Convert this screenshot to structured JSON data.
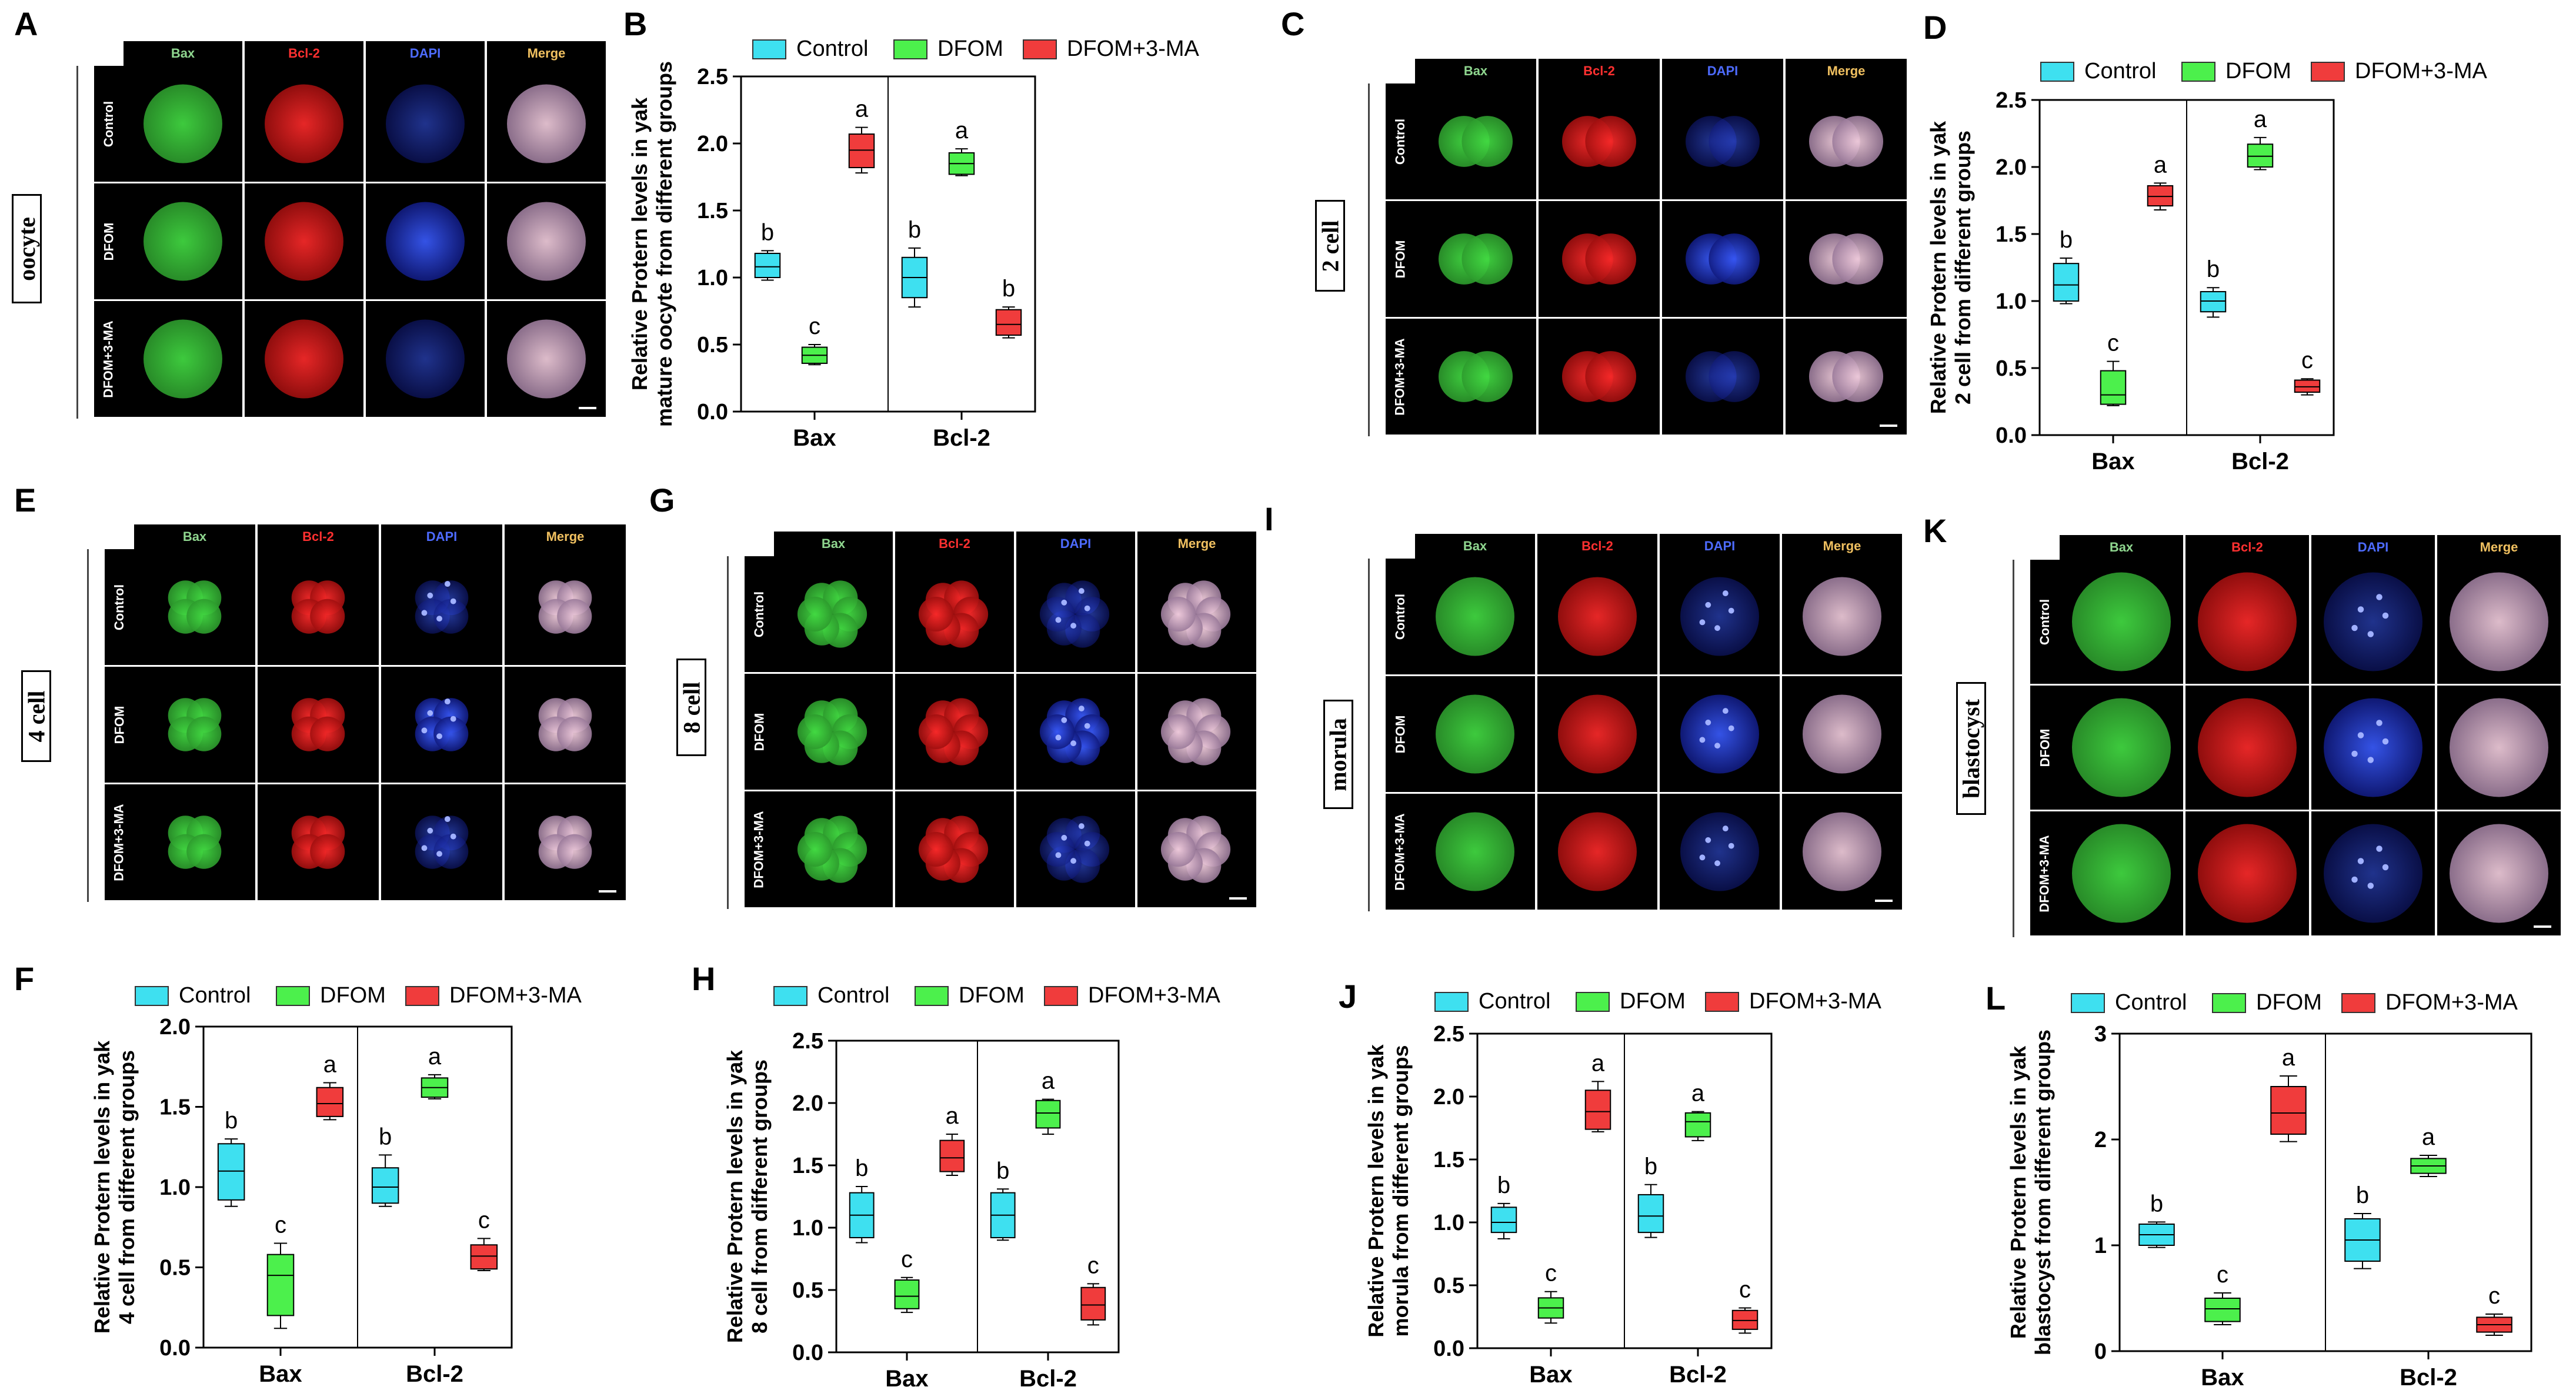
{
  "figure": {
    "panel_letters": [
      "A",
      "B",
      "C",
      "D",
      "E",
      "F",
      "G",
      "H",
      "I",
      "J",
      "K",
      "L"
    ],
    "channel_headers": [
      "Bax",
      "Bcl-2",
      "DAPI",
      "Merge"
    ],
    "row_labels": [
      "Control",
      "DFOM",
      "DFOM+3-MA"
    ],
    "header_colors": [
      "#8fd68f",
      "#ff3030",
      "#4d6bff",
      "#f0c060"
    ],
    "stages": [
      {
        "panel": "A",
        "label": "oocyte"
      },
      {
        "panel": "C",
        "label": "2 cell"
      },
      {
        "panel": "E",
        "label": "4 cell"
      },
      {
        "panel": "G",
        "label": "8 cell"
      },
      {
        "panel": "I",
        "label": "morula"
      },
      {
        "panel": "K",
        "label": "blastocyst"
      }
    ],
    "legend": {
      "items": [
        "Control",
        "DFOM",
        "DFOM+3-MA"
      ],
      "colors": [
        "#3ee0f0",
        "#4cf04c",
        "#f03c3c"
      ]
    }
  },
  "chart_data": [
    {
      "panel": "B",
      "type": "box",
      "categories": [
        "Bax",
        "Bcl-2"
      ],
      "ylabel": "Relative Protern levels in yak mature oocyte from different groups",
      "ylim": [
        0,
        2.5
      ],
      "yticks": [
        "0.0",
        "0.5",
        "1.0",
        "1.5",
        "2.0",
        "2.5"
      ],
      "series": [
        {
          "name": "Control",
          "boxes": [
            {
              "min": 0.98,
              "q1": 1.0,
              "median": 1.08,
              "q3": 1.18,
              "max": 1.2,
              "letter": "b"
            },
            {
              "min": 0.78,
              "q1": 0.85,
              "median": 1.0,
              "q3": 1.15,
              "max": 1.22,
              "letter": "b"
            }
          ]
        },
        {
          "name": "DFOM",
          "boxes": [
            {
              "min": 0.35,
              "q1": 0.36,
              "median": 0.42,
              "q3": 0.48,
              "max": 0.5,
              "letter": "c"
            },
            {
              "min": 1.76,
              "q1": 1.77,
              "median": 1.85,
              "q3": 1.93,
              "max": 1.96,
              "letter": "a"
            }
          ]
        },
        {
          "name": "DFOM+3-MA",
          "boxes": [
            {
              "min": 1.78,
              "q1": 1.82,
              "median": 1.95,
              "q3": 2.07,
              "max": 2.12,
              "letter": "a"
            },
            {
              "min": 0.55,
              "q1": 0.57,
              "median": 0.65,
              "q3": 0.76,
              "max": 0.78,
              "letter": "b"
            }
          ]
        }
      ]
    },
    {
      "panel": "D",
      "type": "box",
      "categories": [
        "Bax",
        "Bcl-2"
      ],
      "ylabel": "Relative Protern levels in yak 2 cell from different groups",
      "ylim": [
        0,
        2.5
      ],
      "yticks": [
        "0.0",
        "0.5",
        "1.0",
        "1.5",
        "2.0",
        "2.5"
      ],
      "series": [
        {
          "name": "Control",
          "boxes": [
            {
              "min": 0.98,
              "q1": 1.0,
              "median": 1.12,
              "q3": 1.28,
              "max": 1.32,
              "letter": "b"
            },
            {
              "min": 0.88,
              "q1": 0.92,
              "median": 1.0,
              "q3": 1.07,
              "max": 1.1,
              "letter": "b"
            }
          ]
        },
        {
          "name": "DFOM",
          "boxes": [
            {
              "min": 0.22,
              "q1": 0.23,
              "median": 0.3,
              "q3": 0.48,
              "max": 0.55,
              "letter": "c"
            },
            {
              "min": 1.98,
              "q1": 2.0,
              "median": 2.08,
              "q3": 2.17,
              "max": 2.22,
              "letter": "a"
            }
          ]
        },
        {
          "name": "DFOM+3-MA",
          "boxes": [
            {
              "min": 1.68,
              "q1": 1.71,
              "median": 1.78,
              "q3": 1.86,
              "max": 1.88,
              "letter": "a"
            },
            {
              "min": 0.3,
              "q1": 0.32,
              "median": 0.36,
              "q3": 0.41,
              "max": 0.42,
              "letter": "c"
            }
          ]
        }
      ]
    },
    {
      "panel": "F",
      "type": "box",
      "categories": [
        "Bax",
        "Bcl-2"
      ],
      "ylabel": "Relative Protern levels in yak 4 cell from different groups",
      "ylim": [
        0,
        2.0
      ],
      "yticks": [
        "0.0",
        "0.5",
        "1.0",
        "1.5",
        "2.0"
      ],
      "series": [
        {
          "name": "Control",
          "boxes": [
            {
              "min": 0.88,
              "q1": 0.92,
              "median": 1.1,
              "q3": 1.27,
              "max": 1.3,
              "letter": "b"
            },
            {
              "min": 0.88,
              "q1": 0.9,
              "median": 1.0,
              "q3": 1.12,
              "max": 1.2,
              "letter": "b"
            }
          ]
        },
        {
          "name": "DFOM",
          "boxes": [
            {
              "min": 0.12,
              "q1": 0.2,
              "median": 0.45,
              "q3": 0.58,
              "max": 0.65,
              "letter": "c"
            },
            {
              "min": 1.55,
              "q1": 1.56,
              "median": 1.62,
              "q3": 1.68,
              "max": 1.7,
              "letter": "a"
            }
          ]
        },
        {
          "name": "DFOM+3-MA",
          "boxes": [
            {
              "min": 1.42,
              "q1": 1.44,
              "median": 1.52,
              "q3": 1.62,
              "max": 1.65,
              "letter": "a"
            },
            {
              "min": 0.48,
              "q1": 0.49,
              "median": 0.57,
              "q3": 0.64,
              "max": 0.68,
              "letter": "c"
            }
          ]
        }
      ]
    },
    {
      "panel": "H",
      "type": "box",
      "categories": [
        "Bax",
        "Bcl-2"
      ],
      "ylabel": "Relative Protern levels in yak 8 cell from different groups",
      "ylim": [
        0,
        2.5
      ],
      "yticks": [
        "0.0",
        "0.5",
        "1.0",
        "1.5",
        "2.0",
        "2.5"
      ],
      "series": [
        {
          "name": "Control",
          "boxes": [
            {
              "min": 0.88,
              "q1": 0.92,
              "median": 1.1,
              "q3": 1.28,
              "max": 1.33,
              "letter": "b"
            },
            {
              "min": 0.9,
              "q1": 0.92,
              "median": 1.1,
              "q3": 1.28,
              "max": 1.31,
              "letter": "b"
            }
          ]
        },
        {
          "name": "DFOM",
          "boxes": [
            {
              "min": 0.32,
              "q1": 0.35,
              "median": 0.45,
              "q3": 0.58,
              "max": 0.6,
              "letter": "c"
            },
            {
              "min": 1.75,
              "q1": 1.8,
              "median": 1.92,
              "q3": 2.02,
              "max": 2.03,
              "letter": "a"
            }
          ]
        },
        {
          "name": "DFOM+3-MA",
          "boxes": [
            {
              "min": 1.42,
              "q1": 1.45,
              "median": 1.56,
              "q3": 1.7,
              "max": 1.75,
              "letter": "a"
            },
            {
              "min": 0.22,
              "q1": 0.26,
              "median": 0.38,
              "q3": 0.52,
              "max": 0.55,
              "letter": "c"
            }
          ]
        }
      ]
    },
    {
      "panel": "J",
      "type": "box",
      "categories": [
        "Bax",
        "Bcl-2"
      ],
      "ylabel": "Relative Protern levels in yak morula from different groups",
      "ylim": [
        0,
        2.5
      ],
      "yticks": [
        "0.0",
        "0.5",
        "1.0",
        "1.5",
        "2.0",
        "2.5"
      ],
      "series": [
        {
          "name": "Control",
          "boxes": [
            {
              "min": 0.87,
              "q1": 0.92,
              "median": 1.0,
              "q3": 1.12,
              "max": 1.15,
              "letter": "b"
            },
            {
              "min": 0.88,
              "q1": 0.92,
              "median": 1.05,
              "q3": 1.22,
              "max": 1.3,
              "letter": "b"
            }
          ]
        },
        {
          "name": "DFOM",
          "boxes": [
            {
              "min": 0.2,
              "q1": 0.24,
              "median": 0.32,
              "q3": 0.4,
              "max": 0.45,
              "letter": "c"
            },
            {
              "min": 1.65,
              "q1": 1.68,
              "median": 1.8,
              "q3": 1.87,
              "max": 1.88,
              "letter": "a"
            }
          ]
        },
        {
          "name": "DFOM+3-MA",
          "boxes": [
            {
              "min": 1.72,
              "q1": 1.74,
              "median": 1.88,
              "q3": 2.05,
              "max": 2.12,
              "letter": "a"
            },
            {
              "min": 0.12,
              "q1": 0.15,
              "median": 0.22,
              "q3": 0.3,
              "max": 0.32,
              "letter": "c"
            }
          ]
        }
      ]
    },
    {
      "panel": "L",
      "type": "box",
      "categories": [
        "Bax",
        "Bcl-2"
      ],
      "ylabel": "Relative Protern levels in yak blastocyst from different groups",
      "ylim": [
        0,
        3
      ],
      "yticks": [
        "0",
        "1",
        "2",
        "3"
      ],
      "series": [
        {
          "name": "Control",
          "boxes": [
            {
              "min": 0.98,
              "q1": 1.0,
              "median": 1.1,
              "q3": 1.2,
              "max": 1.22,
              "letter": "b"
            },
            {
              "min": 0.78,
              "q1": 0.85,
              "median": 1.05,
              "q3": 1.25,
              "max": 1.3,
              "letter": "b"
            }
          ]
        },
        {
          "name": "DFOM",
          "boxes": [
            {
              "min": 0.25,
              "q1": 0.28,
              "median": 0.4,
              "q3": 0.5,
              "max": 0.55,
              "letter": "c"
            },
            {
              "min": 1.65,
              "q1": 1.68,
              "median": 1.75,
              "q3": 1.82,
              "max": 1.85,
              "letter": "a"
            }
          ]
        },
        {
          "name": "DFOM+3-MA",
          "boxes": [
            {
              "min": 1.98,
              "q1": 2.05,
              "median": 2.25,
              "q3": 2.5,
              "max": 2.6,
              "letter": "a"
            },
            {
              "min": 0.15,
              "q1": 0.18,
              "median": 0.25,
              "q3": 0.32,
              "max": 0.35,
              "letter": "c"
            }
          ]
        }
      ]
    }
  ]
}
